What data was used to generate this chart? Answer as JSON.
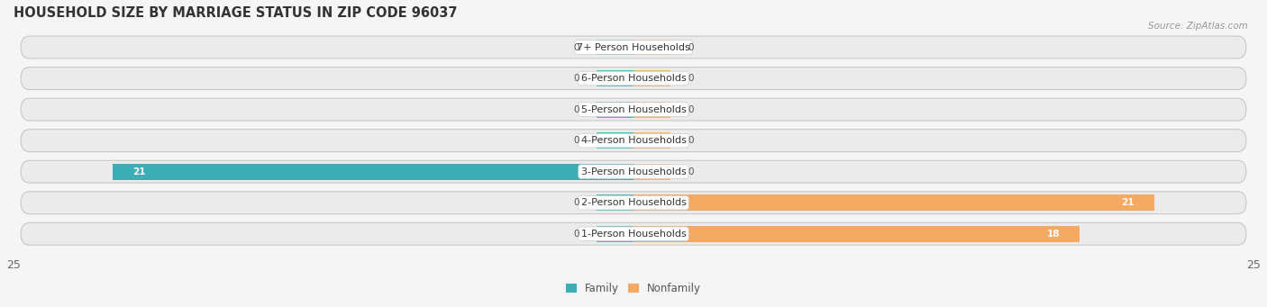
{
  "title": "HOUSEHOLD SIZE BY MARRIAGE STATUS IN ZIP CODE 96037",
  "source": "Source: ZipAtlas.com",
  "categories": [
    "7+ Person Households",
    "6-Person Households",
    "5-Person Households",
    "4-Person Households",
    "3-Person Households",
    "2-Person Households",
    "1-Person Households"
  ],
  "family_values": [
    0,
    0,
    0,
    0,
    21,
    0,
    0
  ],
  "nonfamily_values": [
    0,
    0,
    0,
    0,
    0,
    21,
    18
  ],
  "family_color": "#3BAFB5",
  "nonfamily_color": "#F5A963",
  "xlim": 25,
  "bar_height": 0.52,
  "row_bg": "#e8e8e8",
  "row_border": "#d0d0d0",
  "legend_family": "Family",
  "legend_nonfamily": "Nonfamily",
  "title_fontsize": 10.5,
  "label_fontsize": 8,
  "value_fontsize": 7.5,
  "tick_fontsize": 9,
  "fig_bg": "#f5f5f5"
}
